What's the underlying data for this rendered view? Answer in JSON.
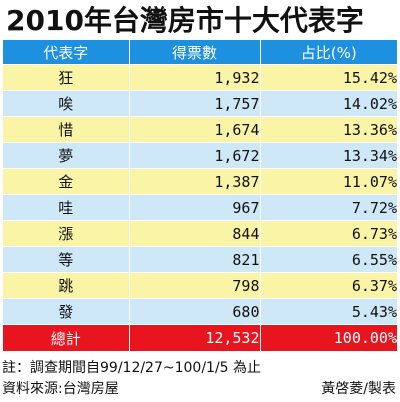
{
  "title": "2010年台灣房市十大代表字",
  "table": {
    "headers": [
      "代表字",
      "得票數",
      "占比(%)"
    ],
    "rows": [
      {
        "char": "狂",
        "votes": "1,932",
        "pct": "15.42%"
      },
      {
        "char": "唉",
        "votes": "1,757",
        "pct": "14.02%"
      },
      {
        "char": "惜",
        "votes": "1,674",
        "pct": "13.36%"
      },
      {
        "char": "夢",
        "votes": "1,672",
        "pct": "13.34%"
      },
      {
        "char": "金",
        "votes": "1,387",
        "pct": "11.07%"
      },
      {
        "char": "哇",
        "votes": "967",
        "pct": "7.72%"
      },
      {
        "char": "漲",
        "votes": "844",
        "pct": "6.73%"
      },
      {
        "char": "等",
        "votes": "821",
        "pct": "6.55%"
      },
      {
        "char": "跳",
        "votes": "798",
        "pct": "6.37%"
      },
      {
        "char": "發",
        "votes": "680",
        "pct": "5.43%"
      }
    ],
    "total": {
      "label": "總計",
      "votes": "12,532",
      "pct": "100.00%"
    }
  },
  "footer": {
    "note": "註：調查期間自99/12/27~100/1/5 為止",
    "source": "資料來源:台灣房屋",
    "credit": "黃啓菱/製表"
  },
  "colors": {
    "header_bg": "#1e90e0",
    "row_yellow": "#f9f4a6",
    "row_blue": "#cfe8f7",
    "total_bg": "#e8141e"
  }
}
